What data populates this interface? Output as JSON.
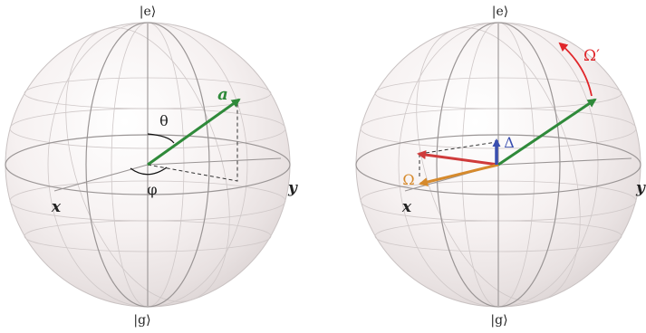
{
  "diagrams": [
    {
      "labels": {
        "top": "|e⟩",
        "bottom": "|g⟩",
        "x_axis": "x",
        "y_axis": "y",
        "vector": "a",
        "theta": "θ",
        "phi": "φ"
      }
    },
    {
      "labels": {
        "top": "|e⟩",
        "bottom": "|g⟩",
        "x_axis": "x",
        "y_axis": "y",
        "omega_prime": "Ω′",
        "delta": "Δ",
        "omega": "Ω"
      }
    }
  ],
  "colors": {
    "sphere_edge": "#b9b3b3",
    "grid": "#999999",
    "vector": "#2f8a3a",
    "omega_prime": "#e0262a",
    "red_vector": "#cf3b3b",
    "orange_vector": "#d68a2c",
    "blue_vector": "#3a4fb0"
  }
}
